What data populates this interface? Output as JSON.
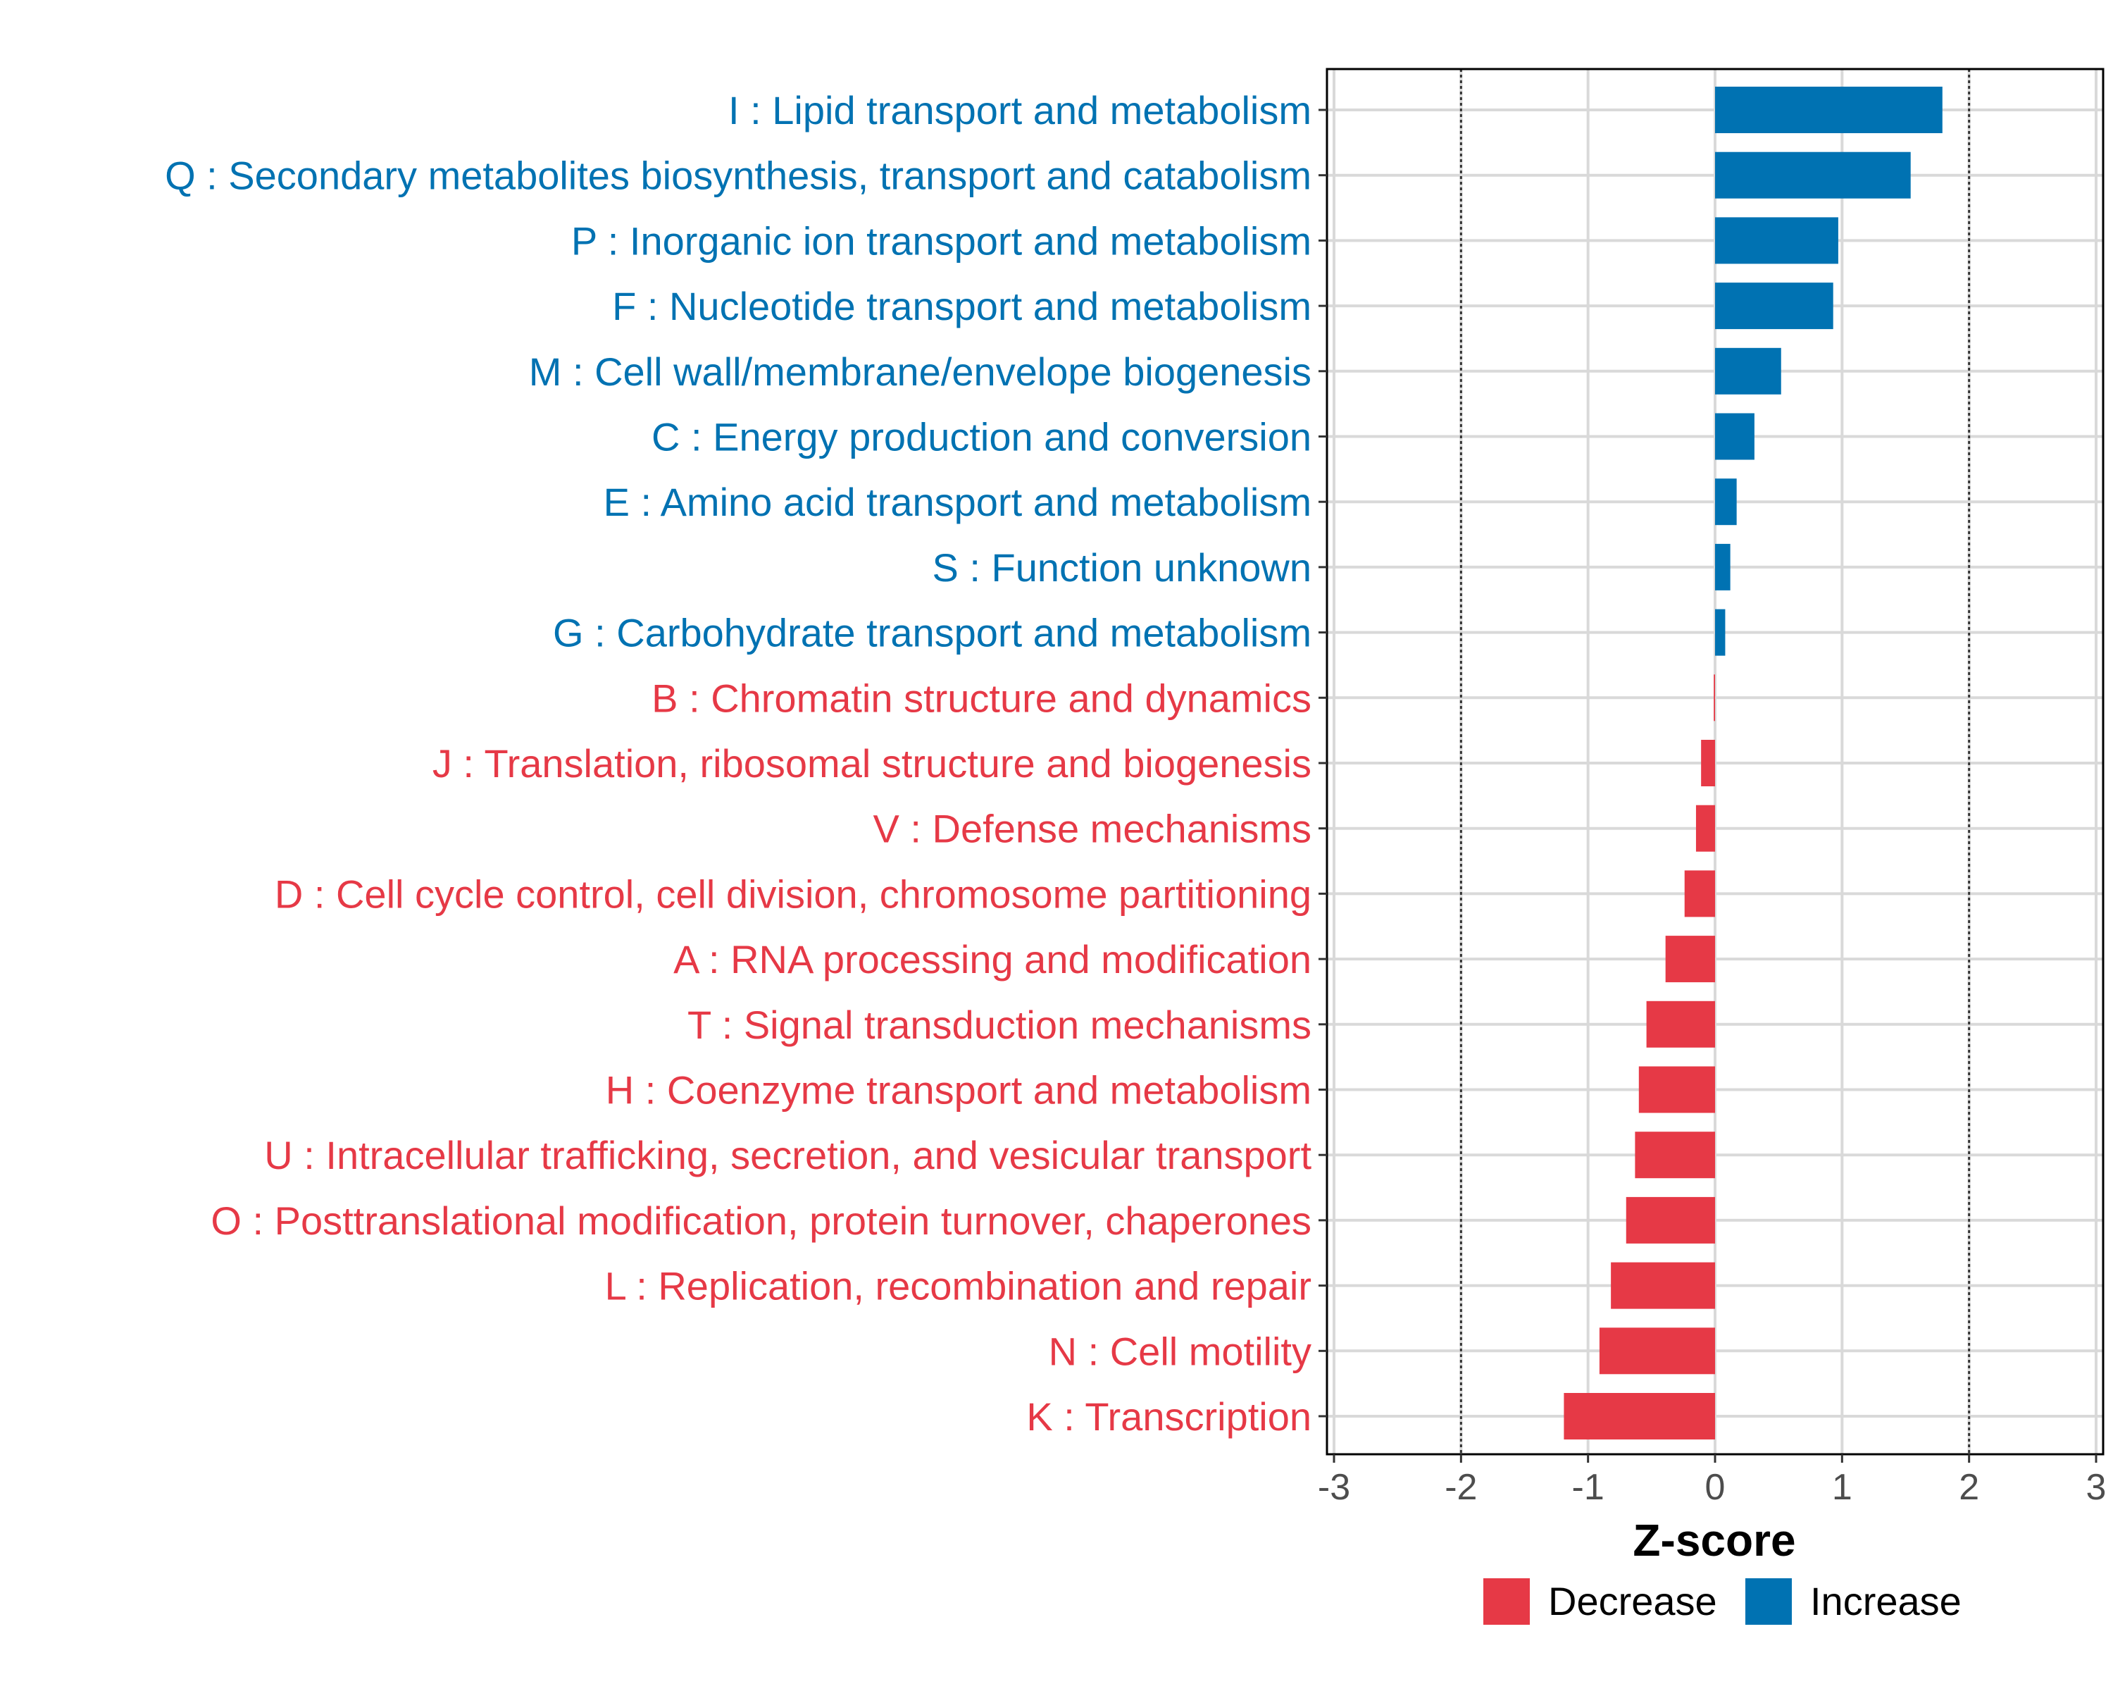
{
  "chart_data": {
    "type": "bar",
    "orientation": "horizontal",
    "xlabel": "Z-score",
    "xlim": [
      -3,
      3
    ],
    "xticks": [
      -3,
      -2,
      -1,
      0,
      1,
      2,
      3
    ],
    "reference_lines": [
      -2,
      2
    ],
    "categories": [
      "I : Lipid transport and metabolism",
      "Q : Secondary metabolites biosynthesis, transport and catabolism",
      "P : Inorganic ion transport and metabolism",
      "F : Nucleotide transport and metabolism",
      "M : Cell wall/membrane/envelope biogenesis",
      "C : Energy production and conversion",
      "E : Amino acid transport and metabolism",
      "S : Function unknown",
      "G : Carbohydrate transport and metabolism",
      "B : Chromatin structure and dynamics",
      "J : Translation, ribosomal structure and biogenesis",
      "V : Defense mechanisms",
      "D : Cell cycle control, cell division, chromosome partitioning",
      "A : RNA processing and modification",
      "T : Signal transduction mechanisms",
      "H : Coenzyme transport and metabolism",
      "U : Intracellular trafficking, secretion, and vesicular transport",
      "O : Posttranslational modification, protein turnover, chaperones",
      "L : Replication, recombination and repair",
      "N : Cell motility",
      "K : Transcription"
    ],
    "values": [
      1.79,
      1.54,
      0.97,
      0.93,
      0.52,
      0.31,
      0.17,
      0.12,
      0.08,
      -0.01,
      -0.11,
      -0.15,
      -0.24,
      -0.39,
      -0.54,
      -0.6,
      -0.63,
      -0.7,
      -0.82,
      -0.91,
      -1.19
    ],
    "groups": [
      "Increase",
      "Increase",
      "Increase",
      "Increase",
      "Increase",
      "Increase",
      "Increase",
      "Increase",
      "Increase",
      "Decrease",
      "Decrease",
      "Decrease",
      "Decrease",
      "Decrease",
      "Decrease",
      "Decrease",
      "Decrease",
      "Decrease",
      "Decrease",
      "Decrease",
      "Decrease"
    ],
    "legend": [
      {
        "name": "Decrease",
        "color": "#E63946"
      },
      {
        "name": "Increase",
        "color": "#0072B2"
      }
    ],
    "legend_position": "bottom",
    "grid": true
  }
}
